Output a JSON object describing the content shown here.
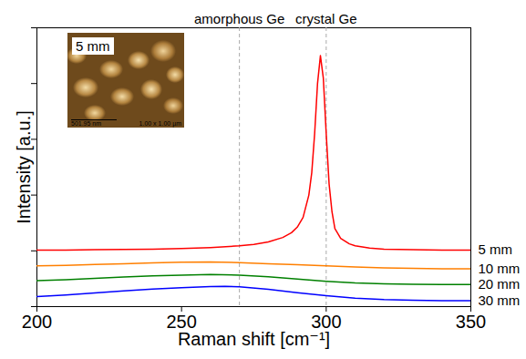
{
  "chart_data": {
    "type": "line",
    "x_label": "Raman shift [cm⁻¹]",
    "y_label": "Intensity [a.u.]",
    "xlim": [
      200,
      350
    ],
    "ylim": [
      0,
      100
    ],
    "xticks": [
      200,
      250,
      300,
      350
    ],
    "yticks": [
      0,
      20,
      40,
      60,
      80,
      100
    ],
    "tick_labels": "x",
    "legend": "right",
    "reference_lines": [
      {
        "x": 270,
        "label": "amorphous Ge"
      },
      {
        "x": 300,
        "label": "crystal Ge"
      }
    ],
    "inset": {
      "label": "5 mm",
      "scale_bar": "501.95 nm",
      "size": "1.00 x 1.00 µm"
    },
    "series": [
      {
        "name": "5 mm",
        "color": "#ff0000",
        "x": [
          200,
          210,
          220,
          230,
          240,
          250,
          260,
          270,
          275,
          280,
          285,
          288,
          290,
          292,
          294,
          295,
          296,
          297,
          298,
          299,
          300,
          301,
          302,
          303,
          305,
          308,
          310,
          315,
          320,
          330,
          340,
          350
        ],
        "values": [
          20.3,
          20.3,
          20.4,
          20.5,
          20.6,
          20.8,
          21.2,
          21.8,
          22.3,
          23.2,
          24.8,
          26.5,
          28.5,
          32,
          40,
          48,
          62,
          80,
          90,
          82,
          62,
          44,
          34,
          28,
          24.5,
          22.5,
          21.8,
          21,
          20.6,
          20.4,
          20.3,
          20.3
        ]
      },
      {
        "name": "10 mm",
        "color": "#ff7f00",
        "x": [
          200,
          210,
          220,
          230,
          240,
          250,
          260,
          270,
          280,
          290,
          300,
          310,
          320,
          330,
          340,
          350
        ],
        "values": [
          14.6,
          14.8,
          15.1,
          15.4,
          15.7,
          15.9,
          16.0,
          15.8,
          15.4,
          15.0,
          14.6,
          14.2,
          13.9,
          13.7,
          13.6,
          13.6
        ]
      },
      {
        "name": "20 mm",
        "color": "#008000",
        "x": [
          200,
          210,
          220,
          230,
          240,
          250,
          260,
          270,
          280,
          290,
          300,
          310,
          320,
          330,
          340,
          350
        ],
        "values": [
          9.3,
          9.6,
          10.1,
          10.6,
          11.0,
          11.3,
          11.5,
          11.3,
          10.7,
          9.9,
          9.1,
          8.5,
          8.2,
          8.0,
          7.9,
          7.9
        ]
      },
      {
        "name": "30 mm",
        "color": "#0000ff",
        "x": [
          200,
          210,
          220,
          230,
          240,
          250,
          260,
          265,
          270,
          280,
          290,
          300,
          310,
          320,
          330,
          340,
          350
        ],
        "values": [
          3.6,
          4.2,
          4.9,
          5.6,
          6.3,
          6.8,
          7.2,
          7.3,
          7.1,
          6.2,
          5.0,
          3.9,
          3.0,
          2.5,
          2.3,
          2.1,
          2.1
        ]
      }
    ]
  }
}
